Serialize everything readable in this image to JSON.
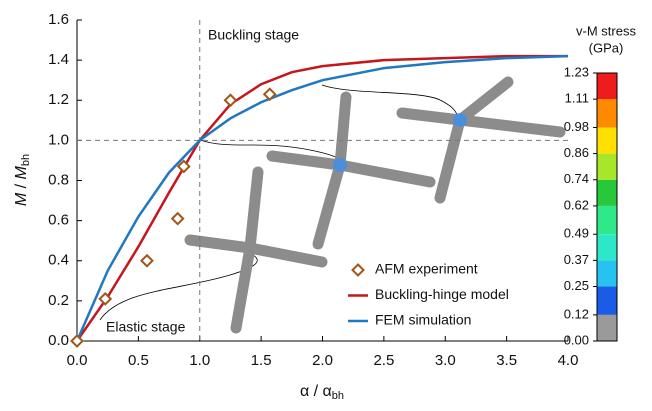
{
  "chart_data": {
    "type": "line",
    "x_label": [
      "α / α",
      "bh"
    ],
    "y_label": [
      "M",
      " / ",
      "M",
      "bh"
    ],
    "xlim": [
      0,
      4
    ],
    "ylim": [
      0,
      1.6
    ],
    "xticks": [
      {
        "value": 0,
        "label": "0.0"
      },
      {
        "value": 0.5,
        "label": "0.5"
      },
      {
        "value": 1,
        "label": "1.0"
      },
      {
        "value": 1.5,
        "label": "1.5"
      },
      {
        "value": 2,
        "label": "2.0"
      },
      {
        "value": 2.5,
        "label": "2.5"
      },
      {
        "value": 3,
        "label": "3.0"
      },
      {
        "value": 3.5,
        "label": "3.5"
      },
      {
        "value": 4,
        "label": "4.0"
      }
    ],
    "yticks": [
      {
        "value": 0,
        "label": "0.0"
      },
      0.2,
      0.4,
      0.6,
      0.8,
      {
        "value": 1,
        "label": "1.0"
      },
      1.2,
      1.4,
      1.6
    ],
    "ref_lines": {
      "x": 1,
      "y": 1
    },
    "annotations": [
      "Buckling stage",
      "Elastic stage"
    ],
    "series": [
      {
        "name": "AFM experiment",
        "kind": "scatter",
        "color": "#a0561c",
        "x": [
          0,
          0.23,
          0.57,
          0.82,
          0.87,
          1.25,
          1.57
        ],
        "values": [
          0,
          0.21,
          0.4,
          0.61,
          0.87,
          1.2,
          1.23
        ]
      },
      {
        "name": "Buckling-hinge model",
        "kind": "line",
        "color": "#c4161c",
        "x": [
          0,
          0.25,
          0.5,
          0.75,
          1.0,
          1.25,
          1.5,
          1.75,
          2.0,
          2.5,
          3.0,
          3.5,
          4.0
        ],
        "values": [
          0,
          0.22,
          0.47,
          0.74,
          1.0,
          1.18,
          1.28,
          1.34,
          1.37,
          1.4,
          1.41,
          1.42,
          1.42
        ]
      },
      {
        "name": "FEM simulation",
        "kind": "line",
        "color": "#1f78c1",
        "x": [
          0,
          0.25,
          0.5,
          0.75,
          1.0,
          1.25,
          1.5,
          1.75,
          2.0,
          2.5,
          3.0,
          3.5,
          4.0
        ],
        "values": [
          0,
          0.35,
          0.62,
          0.84,
          1.0,
          1.11,
          1.19,
          1.25,
          1.3,
          1.36,
          1.39,
          1.41,
          1.42
        ]
      }
    ],
    "colorbar": {
      "title": [
        "v-M stress",
        "(GPa)"
      ],
      "lim": [
        0,
        1.23
      ],
      "ticks": [
        {
          "value": 0,
          "label": "0.00"
        },
        0.12,
        0.25,
        0.37,
        0.49,
        0.62,
        0.74,
        0.86,
        0.98,
        1.11,
        1.23
      ],
      "colors": [
        "#9a9a9a",
        "#1a5ce6",
        "#27c3f0",
        "#2de8c8",
        "#2ee88a",
        "#27c83a",
        "#a8e62a",
        "#ffe000",
        "#ff8a00",
        "#ee1c1c"
      ]
    }
  }
}
